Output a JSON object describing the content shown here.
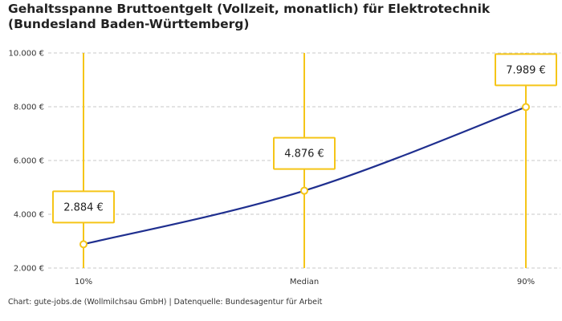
{
  "title": "Gehaltsspanne Bruttoentgelt (Vollzeit, monatlich) für Elektrotechnik (Bundesland Baden-Württemberg)",
  "source": "Chart: gute-jobs.de (Wollmilchsau GmbH) | Datenquelle: Bundesagentur für Arbeit",
  "colors": {
    "line": "#1f2f8f",
    "accent": "#f5c518",
    "grid": "#c8c8c8"
  },
  "chart_data": {
    "type": "line",
    "title": "Gehaltsspanne Bruttoentgelt (Vollzeit, monatlich) für Elektrotechnik (Bundesland Baden-Württemberg)",
    "categories": [
      "10%",
      "Median",
      "90%"
    ],
    "values": [
      2884,
      4876,
      7989
    ],
    "data_labels": [
      "2.884 €",
      "4.876 €",
      "7.989 €"
    ],
    "ylim": [
      2000,
      10000
    ],
    "yticks": [
      2000,
      4000,
      6000,
      8000,
      10000
    ],
    "ytick_labels": [
      "2.000 €",
      "4.000 €",
      "6.000 €",
      "8.000 €",
      "10.000 €"
    ],
    "grid": true,
    "legend": "none"
  }
}
